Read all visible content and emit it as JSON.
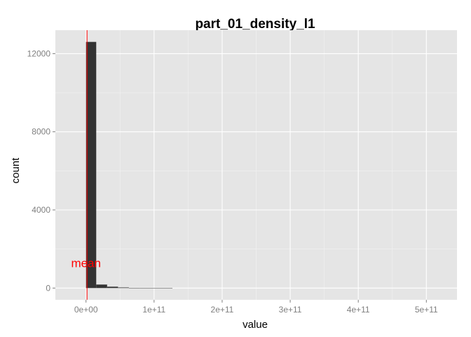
{
  "chart_data": {
    "type": "bar",
    "title": "part_01_density_l1",
    "xlabel": "value",
    "ylabel": "count",
    "xlim": [
      -45000000000,
      545000000000
    ],
    "ylim": [
      -600,
      13200
    ],
    "x_ticks": [
      {
        "value": 0,
        "label": "0e+00"
      },
      {
        "value": 100000000000,
        "label": "1e+11"
      },
      {
        "value": 200000000000,
        "label": "2e+11"
      },
      {
        "value": 300000000000,
        "label": "3e+11"
      },
      {
        "value": 400000000000,
        "label": "4e+11"
      },
      {
        "value": 500000000000,
        "label": "5e+11"
      }
    ],
    "y_ticks": [
      {
        "value": 0,
        "label": "0"
      },
      {
        "value": 4000,
        "label": "4000"
      },
      {
        "value": 8000,
        "label": "8000"
      },
      {
        "value": 12000,
        "label": "12000"
      }
    ],
    "bins": [
      {
        "x0": 0,
        "x1": 15000000000,
        "count": 12600
      },
      {
        "x0": 15000000000,
        "x1": 31000000000,
        "count": 180
      },
      {
        "x0": 31000000000,
        "x1": 47000000000,
        "count": 70
      },
      {
        "x0": 47000000000,
        "x1": 63000000000,
        "count": 30
      },
      {
        "x0": 63000000000,
        "x1": 79000000000,
        "count": 10
      },
      {
        "x0": 79000000000,
        "x1": 95000000000,
        "count": 5
      },
      {
        "x0": 95000000000,
        "x1": 111000000000,
        "count": 3
      },
      {
        "x0": 111000000000,
        "x1": 127000000000,
        "count": 2
      }
    ],
    "mean_line": {
      "value": 1500000000,
      "color": "#ff0000"
    },
    "annotation": {
      "text": "mean",
      "x": 0,
      "y": 1280,
      "color": "#ff0000"
    },
    "grid": true,
    "colors": {
      "panel_bg": "#e5e5e5",
      "grid_major": "#ffffff",
      "grid_minor": "#f2f2f2",
      "bar_fill": "#333333"
    }
  }
}
